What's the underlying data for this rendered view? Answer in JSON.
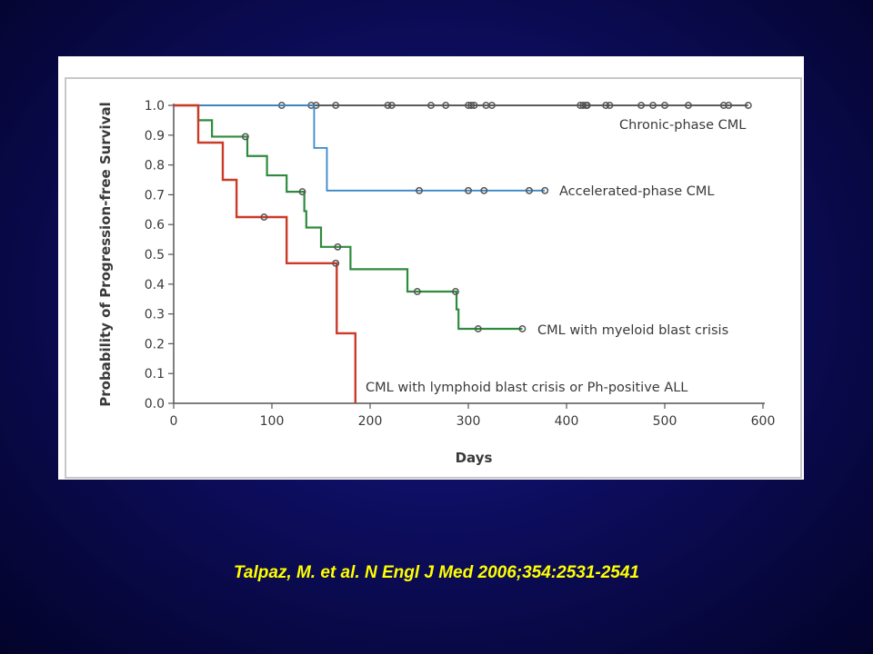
{
  "slide": {
    "citation": "Talpaz, M. et al. N Engl J Med 2006;354:2531-2541"
  },
  "colors": {
    "background": "#0d0d5e",
    "citation": "#ffff00",
    "chronic": "#444444",
    "accelerated": "#3a87c8",
    "myeloid": "#2e8b3e",
    "lymphoid": "#cc3a28"
  },
  "chart_data": {
    "type": "line",
    "title": "",
    "xlabel": "Days",
    "ylabel": "Probability of Progression-free Survival",
    "xlim": [
      0,
      600
    ],
    "ylim": [
      0,
      1.0
    ],
    "xticks": [
      0,
      100,
      200,
      300,
      400,
      500,
      600
    ],
    "yticks": [
      "0.0",
      "0.1",
      "0.2",
      "0.3",
      "0.4",
      "0.5",
      "0.6",
      "0.7",
      "0.8",
      "0.9",
      "1.0"
    ],
    "grid": false,
    "series": [
      {
        "name": "Chronic-phase CML",
        "color": "#444444",
        "steps": [
          [
            0,
            1.0
          ],
          [
            585,
            1.0
          ]
        ],
        "censored": [
          110,
          140,
          145,
          165,
          218,
          222,
          262,
          277,
          300,
          303,
          306,
          318,
          324,
          414,
          417,
          420,
          421,
          440,
          444,
          476,
          488,
          500,
          524,
          560,
          565,
          585
        ]
      },
      {
        "name": "Accelerated-phase CML",
        "color": "#3a87c8",
        "steps": [
          [
            0,
            1.0
          ],
          [
            143,
            0.857
          ],
          [
            156,
            0.714
          ],
          [
            378,
            0.714
          ]
        ],
        "censored": [
          250,
          300,
          316,
          362,
          378
        ]
      },
      {
        "name": "CML with myeloid blast crisis",
        "color": "#2e8b3e",
        "steps": [
          [
            0,
            1.0
          ],
          [
            25,
            0.95
          ],
          [
            39,
            0.895
          ],
          [
            75,
            0.83
          ],
          [
            95,
            0.765
          ],
          [
            115,
            0.71
          ],
          [
            133,
            0.645
          ],
          [
            135,
            0.59
          ],
          [
            150,
            0.525
          ],
          [
            180,
            0.45
          ],
          [
            238,
            0.375
          ],
          [
            288,
            0.315
          ],
          [
            290,
            0.25
          ],
          [
            355,
            0.25
          ]
        ],
        "censored": [
          73,
          131,
          167,
          248,
          287,
          310,
          355
        ]
      },
      {
        "name": "CML with lymphoid blast crisis or Ph-positive ALL",
        "color": "#cc3a28",
        "steps": [
          [
            0,
            1.0
          ],
          [
            25,
            0.875
          ],
          [
            50,
            0.75
          ],
          [
            64,
            0.625
          ],
          [
            115,
            0.47
          ],
          [
            166,
            0.235
          ],
          [
            185,
            0.0
          ]
        ],
        "censored": [
          92,
          165
        ]
      }
    ]
  }
}
